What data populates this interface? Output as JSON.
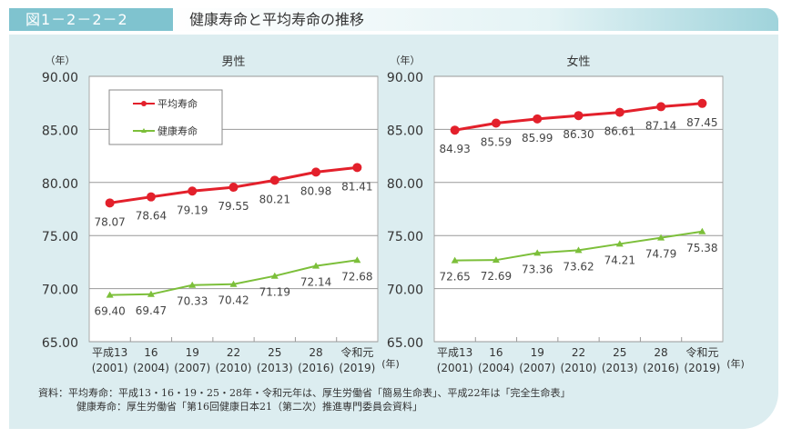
{
  "header": {
    "figure_number": "図1－2－2－2",
    "title": "健康寿命と平均寿命の推移"
  },
  "chart_data": [
    {
      "type": "line",
      "title": "男性",
      "ylabel": "（年）",
      "xunit": "(年)",
      "ylim": [
        65,
        90
      ],
      "yticks": [
        "65.00",
        "70.00",
        "75.00",
        "80.00",
        "85.00",
        "90.00"
      ],
      "grid": true,
      "legend": "top-left",
      "categories": [
        [
          "平成13",
          "(2001)"
        ],
        [
          "16",
          "(2004)"
        ],
        [
          "19",
          "(2007)"
        ],
        [
          "22",
          "(2010)"
        ],
        [
          "25",
          "(2013)"
        ],
        [
          "28",
          "(2016)"
        ],
        [
          "令和元",
          "(2019)"
        ]
      ],
      "series": [
        {
          "name": "平均寿命",
          "color": "#e3202b",
          "marker": "circle",
          "values": [
            78.07,
            78.64,
            79.19,
            79.55,
            80.21,
            80.98,
            81.41
          ]
        },
        {
          "name": "健康寿命",
          "color": "#7cbf3a",
          "marker": "triangle",
          "values": [
            69.4,
            69.47,
            70.33,
            70.42,
            71.19,
            72.14,
            72.68
          ]
        }
      ]
    },
    {
      "type": "line",
      "title": "女性",
      "ylabel": "（年）",
      "xunit": "(年)",
      "ylim": [
        65,
        90
      ],
      "yticks": [
        "65.00",
        "70.00",
        "75.00",
        "80.00",
        "85.00",
        "90.00"
      ],
      "grid": true,
      "categories": [
        [
          "平成13",
          "(2001)"
        ],
        [
          "16",
          "(2004)"
        ],
        [
          "19",
          "(2007)"
        ],
        [
          "22",
          "(2010)"
        ],
        [
          "25",
          "(2013)"
        ],
        [
          "28",
          "(2016)"
        ],
        [
          "令和元",
          "(2019)"
        ]
      ],
      "series": [
        {
          "name": "平均寿命",
          "color": "#e3202b",
          "marker": "circle",
          "values": [
            84.93,
            85.59,
            85.99,
            86.3,
            86.61,
            87.14,
            87.45
          ]
        },
        {
          "name": "健康寿命",
          "color": "#7cbf3a",
          "marker": "triangle",
          "values": [
            72.65,
            72.69,
            73.36,
            73.62,
            74.21,
            74.79,
            75.38
          ]
        }
      ]
    }
  ],
  "notes": [
    "資料：平均寿命：平成13・16・19・25・28年・令和元年は、厚生労働省「簡易生命表」、平成22年は「完全生命表」",
    "健康寿命：厚生労働省「第16回健康日本21（第二次）推進専門委員会資料」"
  ]
}
